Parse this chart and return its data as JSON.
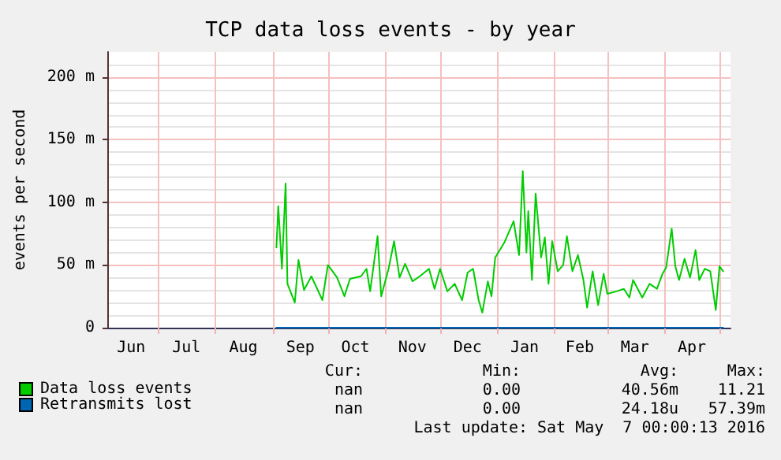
{
  "chart_data": {
    "type": "line",
    "title": "TCP data loss events - by year",
    "ylabel": "events per second",
    "xlim": [
      "2015-06-03",
      "2016-05-07"
    ],
    "xticks": [
      {
        "value": "2015-07-01",
        "label": null
      },
      {
        "value": "2015-08-01",
        "label": null
      },
      {
        "value": "2015-09-01",
        "label": null
      },
      {
        "value": "2015-10-01",
        "label": null
      },
      {
        "value": "2015-11-01",
        "label": null
      },
      {
        "value": "2015-12-01",
        "label": null
      },
      {
        "value": "2016-01-01",
        "label": null
      },
      {
        "value": "2016-02-01",
        "label": null
      },
      {
        "value": "2016-03-01",
        "label": null
      },
      {
        "value": "2016-04-01",
        "label": null
      },
      {
        "value": "2016-05-01",
        "label": null
      },
      {
        "value": "2015-06-16",
        "label": "Jun"
      },
      {
        "value": "2015-07-16",
        "label": "Jul"
      },
      {
        "value": "2015-08-16",
        "label": "Aug"
      },
      {
        "value": "2015-09-16",
        "label": "Sep"
      },
      {
        "value": "2015-10-16",
        "label": "Oct"
      },
      {
        "value": "2015-11-16",
        "label": "Nov"
      },
      {
        "value": "2015-12-16",
        "label": "Dec"
      },
      {
        "value": "2016-01-16",
        "label": "Jan"
      },
      {
        "value": "2016-02-15",
        "label": "Feb"
      },
      {
        "value": "2016-03-16",
        "label": "Mar"
      },
      {
        "value": "2016-04-16",
        "label": "Apr"
      }
    ],
    "ylim": [
      0,
      220
    ],
    "yticks": [
      0,
      {
        "value": 50,
        "label": "50 m"
      },
      {
        "value": 100,
        "label": "100 m"
      },
      {
        "value": 150,
        "label": "150 m"
      },
      {
        "value": 200,
        "label": "200 m"
      }
    ],
    "grid": true,
    "legend": "bottom left",
    "marker": "none",
    "line_style": "solid",
    "series": [
      {
        "name": "Data loss events",
        "color": "#00cc00",
        "x": [
          "2015-09-03",
          "2015-09-04",
          "2015-09-06",
          "2015-09-08",
          "2015-09-09",
          "2015-09-13",
          "2015-09-15",
          "2015-09-18",
          "2015-09-22",
          "2015-09-28",
          "2015-10-01",
          "2015-10-06",
          "2015-10-10",
          "2015-10-13",
          "2015-10-19",
          "2015-10-22",
          "2015-10-24",
          "2015-10-28",
          "2015-10-30",
          "2015-11-03",
          "2015-11-06",
          "2015-11-09",
          "2015-11-12",
          "2015-11-16",
          "2015-11-20",
          "2015-11-25",
          "2015-11-28",
          "2015-12-01",
          "2015-12-05",
          "2015-12-09",
          "2015-12-13",
          "2015-12-16",
          "2015-12-19",
          "2015-12-22",
          "2015-12-24",
          "2015-12-27",
          "2015-12-29",
          "2015-12-31",
          "2016-01-05",
          "2016-01-10",
          "2016-01-13",
          "2016-01-15",
          "2016-01-17",
          "2016-01-18",
          "2016-01-20",
          "2016-01-22",
          "2016-01-25",
          "2016-01-27",
          "2016-01-29",
          "2016-01-31",
          "2016-02-03",
          "2016-02-06",
          "2016-02-08",
          "2016-02-11",
          "2016-02-14",
          "2016-02-17",
          "2016-02-19",
          "2016-02-22",
          "2016-02-25",
          "2016-02-28",
          "2016-03-01",
          "2016-03-06",
          "2016-03-10",
          "2016-03-13",
          "2016-03-15",
          "2016-03-20",
          "2016-03-24",
          "2016-03-28",
          "2016-03-31",
          "2016-04-02",
          "2016-04-05",
          "2016-04-07",
          "2016-04-09",
          "2016-04-12",
          "2016-04-15",
          "2016-04-18",
          "2016-04-20",
          "2016-04-23",
          "2016-04-26",
          "2016-04-29",
          "2016-05-01",
          "2016-05-03"
        ],
        "values": [
          64,
          97,
          47,
          115,
          35,
          20,
          54,
          30,
          41,
          22,
          50,
          40,
          25,
          39,
          41,
          47,
          29,
          73,
          25,
          47,
          69,
          40,
          51,
          37,
          41,
          47,
          31,
          47,
          29,
          35,
          22,
          44,
          47,
          22,
          12,
          37,
          25,
          56,
          68,
          85,
          58,
          125,
          60,
          93,
          38,
          107,
          56,
          72,
          35,
          69,
          45,
          50,
          73,
          45,
          58,
          38,
          16,
          45,
          18,
          43,
          27,
          29,
          31,
          24,
          38,
          24,
          35,
          31,
          43,
          48,
          79,
          49,
          38,
          55,
          40,
          62,
          38,
          47,
          45,
          14,
          49,
          45
        ]
      },
      {
        "name": "Retransmits lost",
        "color": "#0066b3",
        "x": [
          "2015-09-03",
          "2016-05-03"
        ],
        "values": [
          0,
          0
        ]
      }
    ],
    "annotations": [
      "Cur:",
      "Min:",
      "Avg:",
      "Max:",
      "nan",
      "0.00",
      "40.56m",
      "11.21",
      "nan",
      "0.00",
      "24.18u",
      "57.39m",
      "Last update: Sat May  7 00:00:13 2016"
    ]
  }
}
